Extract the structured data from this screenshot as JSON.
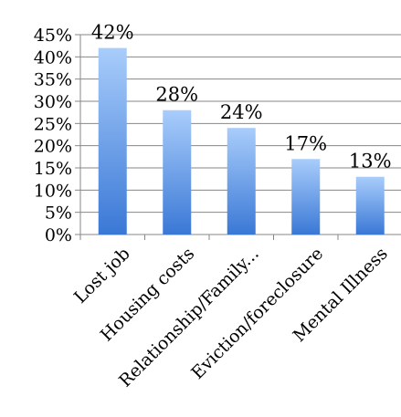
{
  "chart_data": {
    "type": "bar",
    "categories": [
      "Lost job",
      "Housing costs",
      "Relationship/Family...",
      "Eviction/foreclosure",
      "Mental Illness"
    ],
    "values": [
      42,
      28,
      24,
      17,
      13
    ],
    "data_labels": [
      "42%",
      "28%",
      "24%",
      "17%",
      "13%"
    ],
    "yticks": [
      "0%",
      "5%",
      "10%",
      "15%",
      "20%",
      "25%",
      "30%",
      "35%",
      "40%",
      "45%"
    ],
    "ylim": [
      0,
      45
    ],
    "grid": true,
    "legend": "none",
    "colors": {
      "bar_top": "#a9cdfb",
      "bar_bottom": "#3a78d6",
      "grid": "#878787",
      "axis": "#878787"
    }
  }
}
